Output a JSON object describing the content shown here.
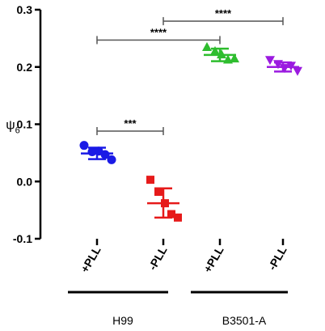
{
  "chart_data": {
    "type": "scatter",
    "ylabel": "ψ",
    "ylabel_subscript": "6",
    "ylim": [
      -0.1,
      0.3
    ],
    "yticks": [
      {
        "value": -0.1,
        "label": "-0.1"
      },
      {
        "value": 0.0,
        "label": "0.0"
      },
      {
        "value": 0.1,
        "label": "0.1"
      },
      {
        "value": 0.2,
        "label": "0.2"
      },
      {
        "value": 0.3,
        "label": "0.3"
      }
    ],
    "categories": [
      "+PLL",
      "-PLL",
      "+PLL",
      "-PLL"
    ],
    "groups": [
      {
        "label": "H99",
        "categories": [
          0,
          1
        ]
      },
      {
        "label": "B3501-A",
        "categories": [
          2,
          3
        ]
      }
    ],
    "series": [
      {
        "category": 0,
        "marker": "circle",
        "color": "#1a1ae6",
        "points": [
          0.063,
          0.052,
          0.053,
          0.047,
          0.038
        ],
        "mean": 0.049,
        "sd_low": 0.039,
        "sd_high": 0.059
      },
      {
        "category": 1,
        "marker": "square",
        "color": "#e61a1a",
        "points": [
          0.003,
          -0.018,
          -0.038,
          -0.057,
          -0.063
        ],
        "mean": -0.038,
        "sd_low": -0.063,
        "sd_high": -0.012
      },
      {
        "category": 2,
        "marker": "triangle-up",
        "color": "#2ebd2e",
        "points": [
          0.235,
          0.228,
          0.222,
          0.213,
          0.215
        ],
        "mean": 0.221,
        "sd_low": 0.21,
        "sd_high": 0.232
      },
      {
        "category": 3,
        "marker": "triangle-down",
        "color": "#9b1ae0",
        "points": [
          0.212,
          0.205,
          0.198,
          0.202,
          0.193
        ],
        "mean": 0.2,
        "sd_low": 0.192,
        "sd_high": 0.208
      }
    ],
    "significance": [
      {
        "from": 0,
        "to": 1,
        "y": 0.088,
        "label": "***"
      },
      {
        "from": 0,
        "to": 2,
        "y": 0.247,
        "label": "****"
      },
      {
        "from": 1,
        "to": 3,
        "y": 0.28,
        "label": "****"
      }
    ],
    "grid": false,
    "legend": "none"
  }
}
